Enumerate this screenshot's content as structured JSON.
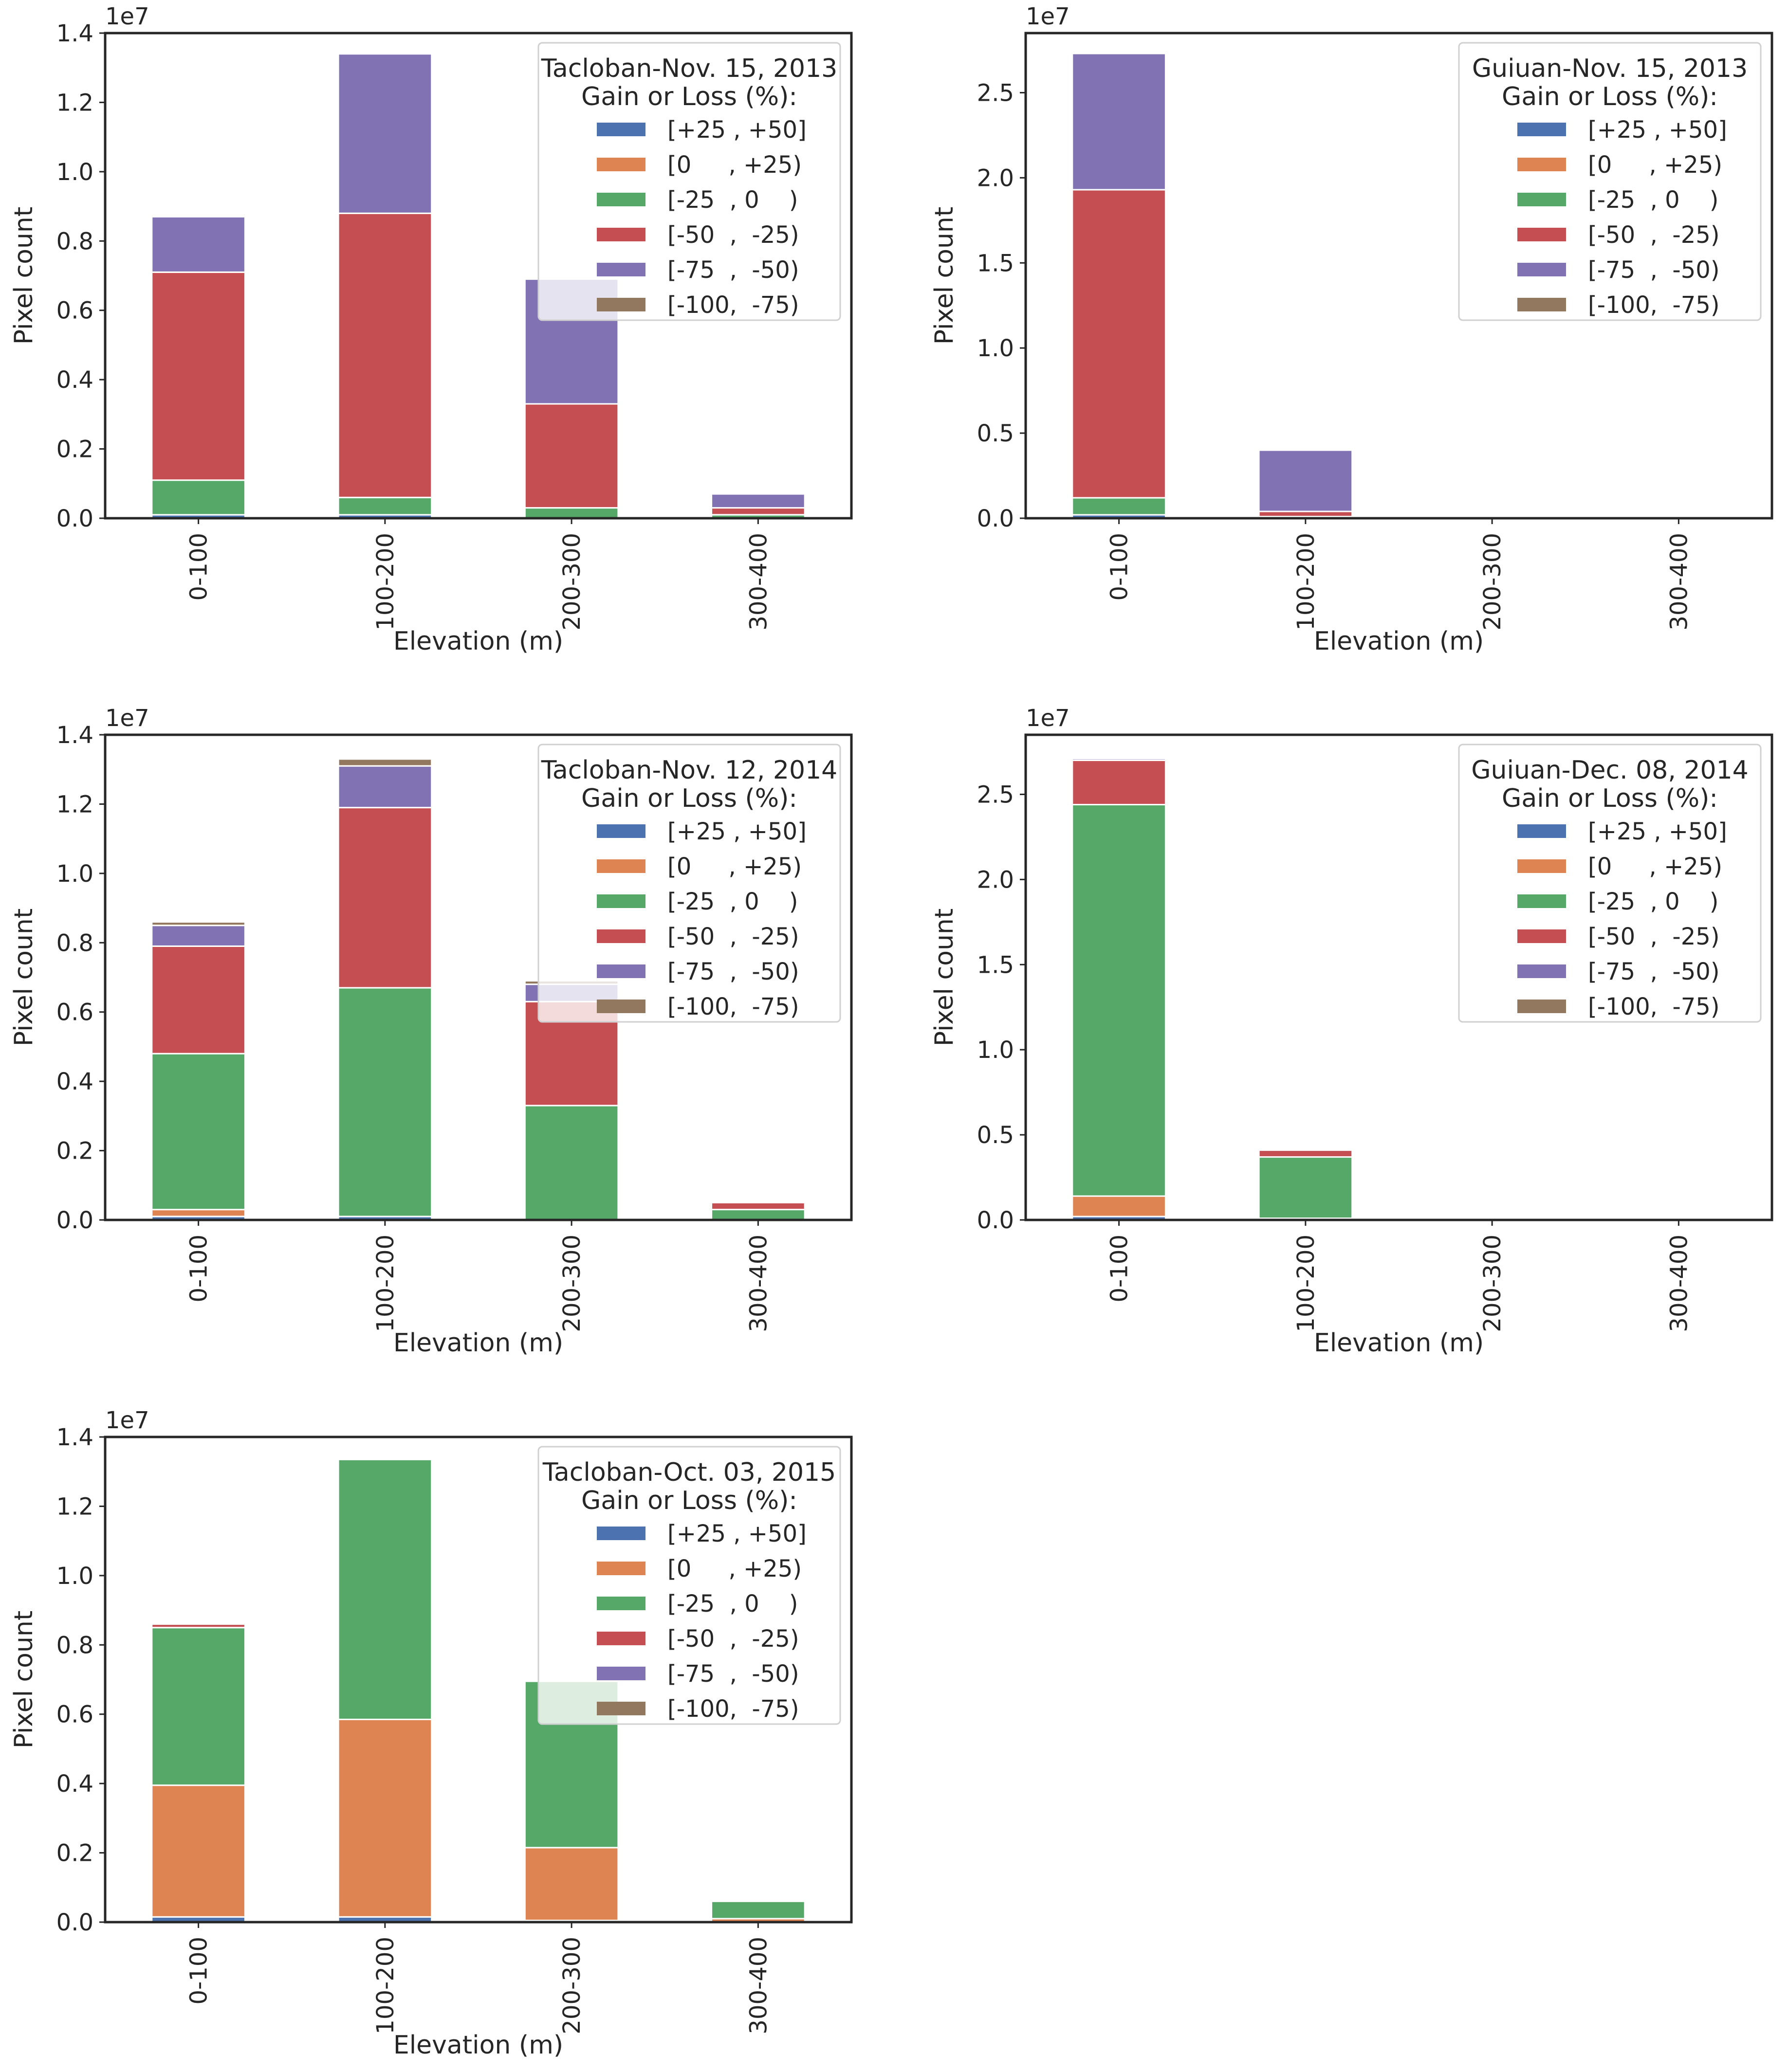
{
  "legend": {
    "header": "Gain or Loss (%):",
    "entries": [
      {
        "label": "[+25 , +50]",
        "color": "#4c72b0"
      },
      {
        "label": "[0     , +25)",
        "color": "#dd8452"
      },
      {
        "label": "[-25  , 0    )",
        "color": "#55a868"
      },
      {
        "label": "[-50  ,  -25)",
        "color": "#c44e52"
      },
      {
        "label": "[-75  ,  -50)",
        "color": "#8172b3"
      },
      {
        "label": "[-100,  -75)",
        "color": "#937860"
      }
    ]
  },
  "chart_data": [
    {
      "type": "bar",
      "stacked": true,
      "title": "Tacloban-Nov. 15, 2013",
      "xlabel": "Elevation (m)",
      "ylabel": "Pixel count",
      "offset_label": "1e7",
      "categories": [
        "0-100",
        "100-200",
        "200-300",
        "300-400"
      ],
      "ylim": [
        0,
        1.4
      ],
      "yticks": [
        "0.0",
        "0.2",
        "0.4",
        "0.6",
        "0.8",
        "1.0",
        "1.2",
        "1.4"
      ],
      "series": [
        {
          "name": "[+25 , +50]",
          "values": [
            0.01,
            0.01,
            0.0,
            0.0
          ]
        },
        {
          "name": "[0     , +25)",
          "values": [
            0.0,
            0.0,
            0.0,
            0.0
          ]
        },
        {
          "name": "[-25  , 0    )",
          "values": [
            0.1,
            0.05,
            0.03,
            0.01
          ]
        },
        {
          "name": "[-50  ,  -25)",
          "values": [
            0.6,
            0.82,
            0.3,
            0.02
          ]
        },
        {
          "name": "[-75  ,  -50)",
          "values": [
            0.16,
            0.46,
            0.36,
            0.04
          ]
        },
        {
          "name": "[-100,  -75)",
          "values": [
            0.0,
            0.0,
            0.0,
            0.0
          ]
        }
      ]
    },
    {
      "type": "bar",
      "stacked": true,
      "title": "Guiuan-Nov. 15, 2013",
      "xlabel": "Elevation (m)",
      "ylabel": "Pixel count",
      "offset_label": "1e7",
      "categories": [
        "0-100",
        "100-200",
        "200-300",
        "300-400"
      ],
      "ylim": [
        0,
        2.85
      ],
      "yticks": [
        "0.0",
        "0.5",
        "1.0",
        "1.5",
        "2.0",
        "2.5"
      ],
      "series": [
        {
          "name": "[+25 , +50]",
          "values": [
            0.02,
            0.0,
            0.0,
            0.0
          ]
        },
        {
          "name": "[0     , +25)",
          "values": [
            0.0,
            0.0,
            0.0,
            0.0
          ]
        },
        {
          "name": "[-25  , 0    )",
          "values": [
            0.1,
            0.01,
            0.0,
            0.0
          ]
        },
        {
          "name": "[-50  ,  -25)",
          "values": [
            1.81,
            0.03,
            0.0,
            0.0
          ]
        },
        {
          "name": "[-75  ,  -50)",
          "values": [
            0.8,
            0.36,
            0.0,
            0.0
          ]
        },
        {
          "name": "[-100,  -75)",
          "values": [
            0.0,
            0.0,
            0.0,
            0.0
          ]
        }
      ]
    },
    {
      "type": "bar",
      "stacked": true,
      "title": "Tacloban-Nov. 12, 2014",
      "xlabel": "Elevation (m)",
      "ylabel": "Pixel count",
      "offset_label": "1e7",
      "categories": [
        "0-100",
        "100-200",
        "200-300",
        "300-400"
      ],
      "ylim": [
        0,
        1.4
      ],
      "yticks": [
        "0.0",
        "0.2",
        "0.4",
        "0.6",
        "0.8",
        "1.0",
        "1.2",
        "1.4"
      ],
      "series": [
        {
          "name": "[+25 , +50]",
          "values": [
            0.01,
            0.01,
            0.0,
            0.0
          ]
        },
        {
          "name": "[0     , +25)",
          "values": [
            0.02,
            0.0,
            0.0,
            0.0
          ]
        },
        {
          "name": "[-25  , 0    )",
          "values": [
            0.45,
            0.66,
            0.33,
            0.03
          ]
        },
        {
          "name": "[-50  ,  -25)",
          "values": [
            0.31,
            0.52,
            0.3,
            0.02
          ]
        },
        {
          "name": "[-75  ,  -50)",
          "values": [
            0.06,
            0.12,
            0.05,
            0.0
          ]
        },
        {
          "name": "[-100,  -75)",
          "values": [
            0.01,
            0.02,
            0.01,
            0.0
          ]
        }
      ]
    },
    {
      "type": "bar",
      "stacked": true,
      "title": "Guiuan-Dec. 08, 2014",
      "xlabel": "Elevation (m)",
      "ylabel": "Pixel count",
      "offset_label": "1e7",
      "categories": [
        "0-100",
        "100-200",
        "200-300",
        "300-400"
      ],
      "ylim": [
        0,
        2.85
      ],
      "yticks": [
        "0.0",
        "0.5",
        "1.0",
        "1.5",
        "2.0",
        "2.5"
      ],
      "series": [
        {
          "name": "[+25 , +50]",
          "values": [
            0.02,
            0.01,
            0.0,
            0.0
          ]
        },
        {
          "name": "[0     , +25)",
          "values": [
            0.12,
            0.0,
            0.0,
            0.0
          ]
        },
        {
          "name": "[-25  , 0    )",
          "values": [
            2.3,
            0.36,
            0.0,
            0.0
          ]
        },
        {
          "name": "[-50  ,  -25)",
          "values": [
            0.26,
            0.04,
            0.0,
            0.0
          ]
        },
        {
          "name": "[-75  ,  -50)",
          "values": [
            0.01,
            0.0,
            0.0,
            0.0
          ]
        },
        {
          "name": "[-100,  -75)",
          "values": [
            0.0,
            0.0,
            0.0,
            0.0
          ]
        }
      ]
    },
    {
      "type": "bar",
      "stacked": true,
      "title": "Tacloban-Oct. 03, 2015",
      "xlabel": "Elevation (m)",
      "ylabel": "Pixel count",
      "offset_label": "1e7",
      "categories": [
        "0-100",
        "100-200",
        "200-300",
        "300-400"
      ],
      "ylim": [
        0,
        1.4
      ],
      "yticks": [
        "0.0",
        "0.2",
        "0.4",
        "0.6",
        "0.8",
        "1.0",
        "1.2",
        "1.4"
      ],
      "series": [
        {
          "name": "[+25 , +50]",
          "values": [
            0.015,
            0.015,
            0.005,
            0.0
          ]
        },
        {
          "name": "[0     , +25)",
          "values": [
            0.38,
            0.57,
            0.21,
            0.01
          ]
        },
        {
          "name": "[-25  , 0    )",
          "values": [
            0.455,
            0.75,
            0.48,
            0.05
          ]
        },
        {
          "name": "[-50  ,  -25)",
          "values": [
            0.01,
            0.0,
            0.0,
            0.0
          ]
        },
        {
          "name": "[-75  ,  -50)",
          "values": [
            0.0,
            0.0,
            0.0,
            0.0
          ]
        },
        {
          "name": "[-100,  -75)",
          "values": [
            0.0,
            0.0,
            0.0,
            0.0
          ]
        }
      ]
    }
  ]
}
